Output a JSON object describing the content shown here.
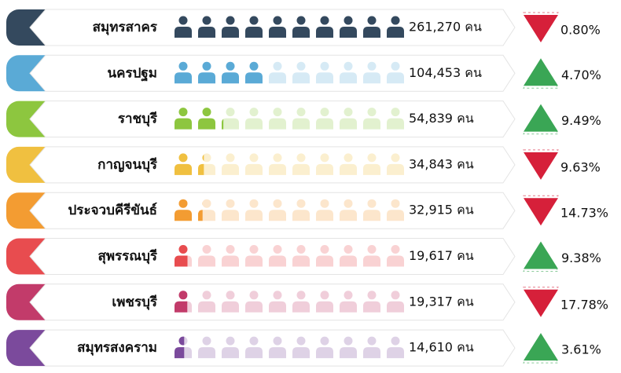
{
  "chart_data": {
    "type": "pictogram",
    "categories": [
      "สมุทรสาคร",
      "นครปฐม",
      "ราชบุรี",
      "กาญจนบุรี",
      "ประจวบคีรีขันธ์",
      "สุพรรณบุรี",
      "เพชรบุรี",
      "สมุทรสงคราม"
    ],
    "values": [
      261270,
      104453,
      54839,
      34843,
      32915,
      19617,
      19317,
      14610
    ],
    "value_labels": [
      "261,270 คน",
      "104,453 คน",
      "54,839 คน",
      "34,843 คน",
      "32,915 คน",
      "19,617 คน",
      "19,317 คน",
      "14,610 คน"
    ],
    "colors": [
      "#34495e",
      "#5aaad6",
      "#8dc63f",
      "#f0c040",
      "#f39c32",
      "#e84c4f",
      "#c23b6a",
      "#7b4a9c"
    ],
    "changes": [
      0.8,
      4.7,
      9.49,
      9.63,
      14.73,
      9.38,
      17.78,
      3.61
    ],
    "change_labels": [
      "0.80%",
      "4.70%",
      "9.49%",
      "9.63%",
      "14.73%",
      "9.38%",
      "17.78%",
      "3.61%"
    ],
    "change_directions": [
      "down",
      "up",
      "up",
      "down",
      "down",
      "up",
      "down",
      "up"
    ],
    "up_color": "#3aa655",
    "down_color": "#d6203a"
  }
}
